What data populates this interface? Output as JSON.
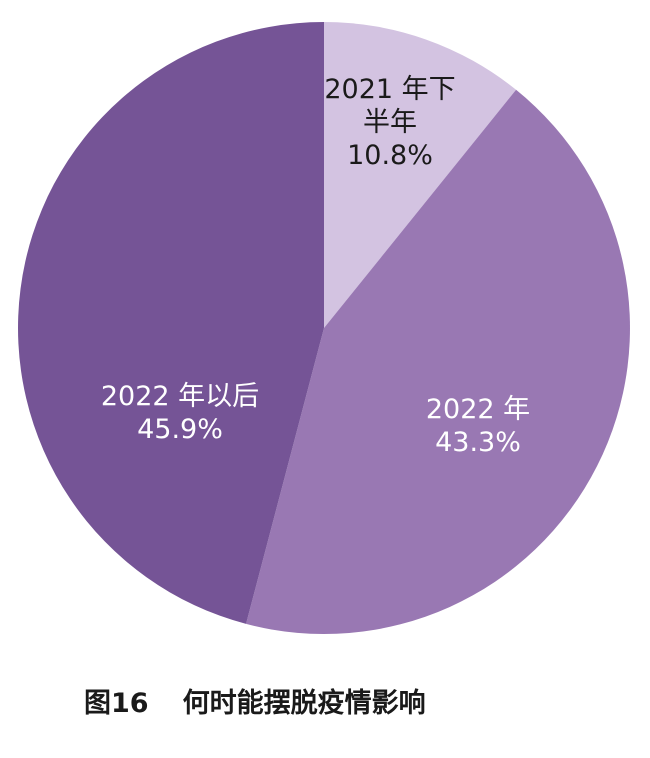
{
  "caption": {
    "figure_number": "图16",
    "title": "何时能摆脱疫情影响"
  },
  "chart_data": {
    "type": "pie",
    "title": "何时能摆脱疫情影响",
    "unit": "%",
    "slices": [
      {
        "label_lines": [
          "2021 年下",
          "半年"
        ],
        "value": 10.8,
        "value_label": "10.8%",
        "color": "#d3c3e1",
        "text_color": "#1a1a1a"
      },
      {
        "label_lines": [
          "2022 年"
        ],
        "value": 43.3,
        "value_label": "43.3%",
        "color": "#9978b3",
        "text_color": "#ffffff"
      },
      {
        "label_lines": [
          "2022 年以后"
        ],
        "value": 45.9,
        "value_label": "45.9%",
        "color": "#755496",
        "text_color": "#ffffff"
      }
    ],
    "start": "12 o'clock",
    "direction": "clockwise",
    "legend": "none"
  }
}
